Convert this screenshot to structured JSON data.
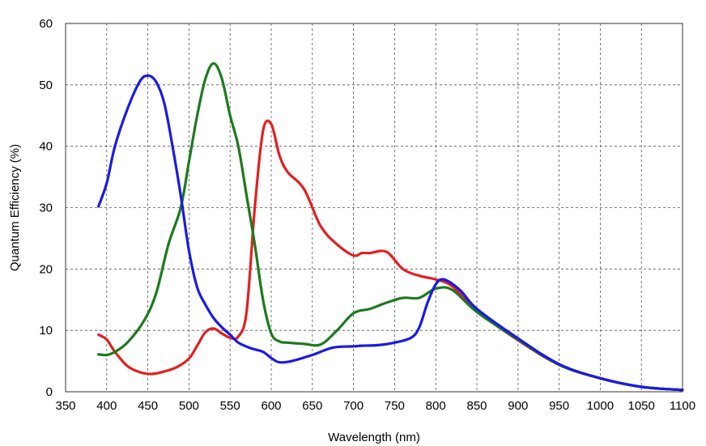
{
  "chart_data": {
    "type": "line",
    "xlabel": "Wavelength (nm)",
    "ylabel": "Quantum Efficiency (%)",
    "xlim": [
      350,
      1100
    ],
    "ylim": [
      0,
      60
    ],
    "xticks": [
      350,
      400,
      450,
      500,
      550,
      600,
      650,
      700,
      750,
      800,
      850,
      900,
      950,
      1000,
      1050,
      1100
    ],
    "yticks": [
      0,
      10,
      20,
      30,
      40,
      50,
      60
    ],
    "grid": true,
    "series": [
      {
        "color": "#e32020",
        "x": [
          390,
          400,
          410,
          425,
          440,
          455,
          470,
          485,
          500,
          510,
          520,
          530,
          540,
          550,
          560,
          570,
          580,
          590,
          600,
          610,
          620,
          640,
          660,
          680,
          700,
          710,
          720,
          740,
          760,
          780,
          800,
          820,
          850,
          900,
          950,
          1000,
          1050,
          1100
        ],
        "y": [
          9.3,
          8.5,
          6.5,
          4.2,
          3.2,
          2.9,
          3.3,
          4.0,
          5.4,
          7.5,
          9.7,
          10.3,
          9.5,
          8.8,
          9.0,
          13,
          30,
          42.5,
          43.6,
          38.5,
          35.8,
          33,
          27,
          24,
          22.2,
          22.6,
          22.6,
          22.8,
          20,
          18.9,
          18.3,
          17.2,
          13.2,
          8.4,
          4.4,
          2.2,
          0.8,
          0.3
        ]
      },
      {
        "color": "#1c7a1c",
        "x": [
          390,
          400,
          410,
          425,
          445,
          460,
          475,
          490,
          500,
          510,
          520,
          530,
          540,
          550,
          560,
          570,
          580,
          590,
          600,
          610,
          620,
          640,
          660,
          680,
          700,
          720,
          740,
          760,
          780,
          800,
          820,
          850,
          900,
          950,
          1000,
          1050,
          1100
        ],
        "y": [
          6.1,
          6.0,
          6.5,
          8.0,
          11.5,
          16,
          24,
          30,
          37.5,
          45,
          51,
          53.5,
          51,
          45,
          40,
          32,
          24,
          15,
          9.5,
          8.2,
          8.0,
          7.8,
          7.7,
          10,
          12.8,
          13.5,
          14.5,
          15.3,
          15.3,
          16.8,
          16.6,
          13,
          8.5,
          4.4,
          2.2,
          0.8,
          0.3
        ]
      },
      {
        "color": "#1a1ae6",
        "x": [
          390,
          400,
          410,
          425,
          440,
          450,
          460,
          470,
          480,
          490,
          500,
          510,
          520,
          530,
          540,
          550,
          560,
          575,
          590,
          600,
          610,
          625,
          650,
          675,
          700,
          710,
          730,
          750,
          770,
          780,
          790,
          800,
          810,
          830,
          850,
          900,
          950,
          1000,
          1050,
          1100
        ],
        "y": [
          30.2,
          34,
          40,
          46,
          50.5,
          51.5,
          50.5,
          47,
          40,
          32,
          23,
          17,
          14.2,
          12,
          10.5,
          9.3,
          8.0,
          7.1,
          6.5,
          5.5,
          4.8,
          5.0,
          6.0,
          7.2,
          7.4,
          7.5,
          7.6,
          8.0,
          8.8,
          10.5,
          14.5,
          17.5,
          18.3,
          16.5,
          13.5,
          8.7,
          4.5,
          2.2,
          0.8,
          0.3
        ]
      }
    ]
  }
}
